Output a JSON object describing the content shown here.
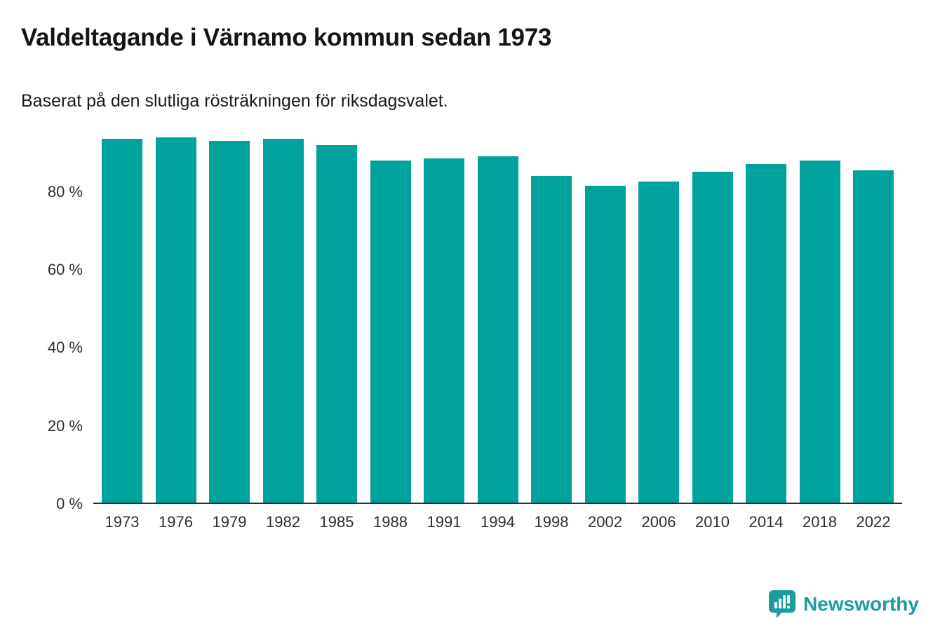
{
  "page": {
    "title": "Valdeltagande i Värnamo kommun sedan 1973",
    "subtitle": "Baserat på den slutliga rösträkningen för riksdagsvalet."
  },
  "chart_data": {
    "type": "bar",
    "title": "Valdeltagande i Värnamo kommun sedan 1973",
    "subtitle": "Baserat på den slutliga rösträkningen för riksdagsvalet.",
    "categories": [
      "1973",
      "1976",
      "1979",
      "1982",
      "1985",
      "1988",
      "1991",
      "1994",
      "1998",
      "2002",
      "2006",
      "2010",
      "2014",
      "2018",
      "2022"
    ],
    "values": [
      93.5,
      94.0,
      93.0,
      93.5,
      92.0,
      88.0,
      88.5,
      89.0,
      84.0,
      81.5,
      82.5,
      85.0,
      87.0,
      88.0,
      85.5
    ],
    "unit": "%",
    "xlabel": "",
    "ylabel": "",
    "ylim": [
      0,
      95
    ],
    "yticks": [
      {
        "value": 0,
        "label": "0 %"
      },
      {
        "value": 20,
        "label": "20 %"
      },
      {
        "value": 40,
        "label": "40 %"
      },
      {
        "value": 60,
        "label": "60 %"
      },
      {
        "value": 80,
        "label": "80 %"
      }
    ],
    "bar_color": "#00a39b",
    "grid": false,
    "legend": false
  },
  "footer": {
    "brand": "Newsworthy",
    "brand_color": "#1b9d9d"
  }
}
